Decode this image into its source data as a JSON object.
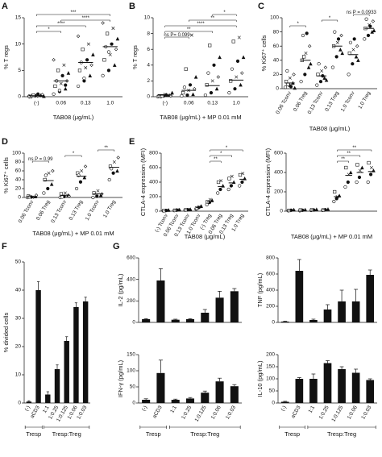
{
  "chart_data": [
    {
      "type": "scatter",
      "panel": "A",
      "ylabel": "% T regs",
      "xlabel": "TAB08 (μg/mL)",
      "categories": [
        "(-)",
        "0.06",
        "0.13",
        "1.0"
      ],
      "ylim": [
        0,
        15
      ],
      "yticks": [
        0,
        5,
        10,
        15
      ],
      "points": [
        [
          0.1,
          0.2,
          0.3,
          0,
          0.1,
          0.4,
          0.2,
          0.5,
          0.1,
          0.3,
          0.2,
          0
        ],
        [
          0.5,
          1,
          1.5,
          2,
          2.5,
          3,
          3,
          4,
          4.5,
          5,
          6,
          7,
          1.2,
          2.2
        ],
        [
          2,
          3,
          4,
          5,
          5.5,
          6,
          6.5,
          7,
          8,
          9,
          10,
          11.5,
          3.5
        ],
        [
          4,
          5,
          6,
          7,
          8,
          9,
          9.5,
          10,
          11,
          12,
          13,
          14,
          8.5
        ]
      ],
      "means": [
        0.2,
        3,
        6.5,
        9.5
      ],
      "brackets": [
        {
          "between": [
            0,
            1
          ],
          "label": "*"
        },
        {
          "between": [
            0,
            2
          ],
          "label": "****"
        },
        {
          "between": [
            1,
            3
          ],
          "label": "****"
        },
        {
          "between": [
            0,
            3
          ],
          "label": "***"
        }
      ]
    },
    {
      "type": "scatter",
      "panel": "B",
      "ylabel": "% T regs",
      "xlabel": "TAB08 (μg/mL) + MP 0.01 mM",
      "categories": [
        "(-)",
        "0.06",
        "0.13",
        "1.0"
      ],
      "ylim": [
        0,
        10
      ],
      "yticks": [
        0,
        2,
        4,
        6,
        8,
        10
      ],
      "points": [
        [
          0,
          0.1,
          0.2,
          0.1,
          0.3,
          0.1,
          0,
          0.2,
          0.5,
          0.1
        ],
        [
          0.1,
          0.2,
          0.3,
          0.5,
          0.8,
          1,
          1.2,
          1.5,
          2.5,
          3.5,
          7.8
        ],
        [
          0.2,
          0.5,
          1,
          1.5,
          2,
          2.5,
          3,
          4,
          5,
          6.5
        ],
        [
          0.5,
          1,
          1.5,
          2,
          2.5,
          3,
          3.5,
          4.5,
          5,
          7,
          7.5
        ]
      ],
      "means": [
        0.2,
        0.8,
        1.4,
        2.1
      ],
      "brackets": [
        {
          "between": [
            0,
            1
          ],
          "label": "ns P= 0.099"
        },
        {
          "between": [
            0,
            2
          ],
          "label": "**"
        },
        {
          "between": [
            0,
            3
          ],
          "label": "****"
        },
        {
          "between": [
            1,
            3
          ],
          "label": "**"
        },
        {
          "between": [
            2,
            3
          ],
          "label": "*"
        }
      ]
    },
    {
      "type": "scatter",
      "panel": "C",
      "ylabel": "% Ki67⁺ cells",
      "xlabel": "TAB08 (μg/mL)",
      "categories": [
        "0.06 Tconv",
        "0.06 Treg",
        "0.13 Tconv",
        "0.13 Treg",
        "1.0 Tconv",
        "1.0 Treg"
      ],
      "ylim": [
        0,
        100
      ],
      "yticks": [
        0,
        20,
        40,
        60,
        80,
        100
      ],
      "points": [
        [
          2,
          5,
          8,
          10,
          15,
          20,
          25,
          3,
          1,
          6
        ],
        [
          10,
          20,
          30,
          40,
          50,
          60,
          75,
          78,
          35,
          45
        ],
        [
          5,
          10,
          15,
          20,
          25,
          30,
          35,
          18,
          12
        ],
        [
          30,
          45,
          55,
          60,
          65,
          75,
          80,
          70,
          50
        ],
        [
          20,
          35,
          45,
          50,
          55,
          60,
          65,
          70,
          40
        ],
        [
          70,
          75,
          80,
          85,
          90,
          95,
          98,
          88,
          82
        ]
      ],
      "means": [
        8,
        40,
        18,
        60,
        48,
        85
      ],
      "brackets": [
        {
          "between": [
            0,
            1
          ],
          "label": "*"
        },
        {
          "between": [
            2,
            3
          ],
          "label": "*"
        },
        {
          "between": [
            4,
            5
          ],
          "label": "ns P = 0.0933"
        }
      ]
    },
    {
      "type": "scatter",
      "panel": "D",
      "ylabel": "% Ki67⁺ cells",
      "xlabel": "TAB08 (μg/mL) + MP 0.01 mM",
      "categories": [
        "0.06 Tconv",
        "0.06 Treg",
        "0.13 Tconv",
        "0.13 Treg",
        "1.0 Tconv",
        "1.0 Treg"
      ],
      "ylim": [
        0,
        100
      ],
      "yticks": [
        0,
        20,
        40,
        60,
        80,
        100
      ],
      "points": [
        [
          0,
          1,
          2,
          3,
          0.5,
          5,
          1
        ],
        [
          10,
          20,
          30,
          40,
          55,
          60,
          50
        ],
        [
          0,
          2,
          5,
          8,
          10,
          3,
          1
        ],
        [
          20,
          35,
          45,
          55,
          60,
          70,
          50
        ],
        [
          0,
          3,
          5,
          10,
          15,
          8
        ],
        [
          40,
          55,
          60,
          70,
          80,
          90,
          65
        ]
      ],
      "means": [
        2,
        38,
        5,
        48,
        8,
        68
      ],
      "brackets": [
        {
          "between": [
            0,
            1
          ],
          "label": "ns P = 0.99"
        },
        {
          "between": [
            2,
            3
          ],
          "label": "*"
        },
        {
          "between": [
            4,
            5
          ],
          "label": "**"
        }
      ]
    },
    {
      "type": "scatter",
      "panel": "E",
      "ylabel": "CTLA-4 expression (MFI)",
      "xlabel": "TAB08 (μg/mL)",
      "categories": [
        "(-) Tconv",
        "0.06 Tconv",
        "0.13 Tconv",
        "1.0 Tconv",
        "(-) Treg",
        "0.06 Treg",
        "0.13 Treg",
        "1.0 Treg"
      ],
      "ylim": [
        0,
        800
      ],
      "yticks": [
        0,
        200,
        400,
        600,
        800
      ],
      "points": [
        [
          5,
          10,
          15,
          8,
          12
        ],
        [
          10,
          15,
          20,
          12,
          18
        ],
        [
          15,
          20,
          25,
          18,
          22
        ],
        [
          30,
          50,
          70,
          40,
          60
        ],
        [
          90,
          120,
          150,
          130,
          160
        ],
        [
          250,
          300,
          350,
          400,
          420
        ],
        [
          300,
          350,
          400,
          450,
          480
        ],
        [
          350,
          400,
          450,
          500,
          520
        ]
      ],
      "means": [
        10,
        15,
        20,
        50,
        130,
        340,
        390,
        440
      ],
      "brackets": [
        {
          "between": [
            4,
            5
          ],
          "label": "**"
        },
        {
          "between": [
            4,
            6
          ],
          "label": "*"
        },
        {
          "between": [
            4,
            7
          ],
          "label": "*"
        }
      ]
    },
    {
      "type": "scatter",
      "ylabel": "CTLA-4 expression (MFI)",
      "xlabel": "TAB08 (μg/mL) + MP 0.01 mM",
      "categories": [
        null,
        null,
        null,
        null,
        null,
        null,
        null,
        null
      ],
      "ylim": [
        0,
        600
      ],
      "yticks": [
        0,
        200,
        400,
        600
      ],
      "points": [
        [
          5,
          10,
          15,
          8
        ],
        [
          5,
          10,
          15,
          12
        ],
        [
          8,
          12,
          18,
          14
        ],
        [
          10,
          15,
          20,
          12
        ],
        [
          100,
          130,
          160,
          200,
          150
        ],
        [
          250,
          300,
          400,
          450,
          380
        ],
        [
          300,
          350,
          450,
          480,
          420
        ],
        [
          300,
          380,
          420,
          500,
          450
        ]
      ],
      "means": [
        10,
        10,
        12,
        15,
        150,
        370,
        400,
        410
      ],
      "brackets": [
        {
          "between": [
            4,
            5
          ],
          "label": "**"
        },
        {
          "between": [
            4,
            6
          ],
          "label": "**"
        },
        {
          "between": [
            4,
            7
          ],
          "label": "**"
        }
      ]
    },
    {
      "type": "bar",
      "panel": "F",
      "ylabel": "% divided cells",
      "categories": [
        "(-)",
        "aCD3",
        "1:1",
        "1:0.25",
        "1:0.125",
        "1:0.06",
        "1:0.03"
      ],
      "ylim": [
        0,
        50
      ],
      "yticks": [
        0,
        10,
        20,
        30,
        40,
        50
      ],
      "values": [
        0.5,
        40,
        3,
        12,
        22,
        34,
        36
      ],
      "errors": [
        0.3,
        3,
        1,
        1.5,
        1.5,
        1.5,
        1.5
      ],
      "color": "#111111",
      "groups": [
        {
          "label": "Tresp",
          "span": [
            0,
            1
          ]
        },
        {
          "label": "Tresp:Treg",
          "span": [
            2,
            6
          ]
        }
      ]
    },
    {
      "type": "bar",
      "panel": "G",
      "ylabel": "IL-2 (pg/mL)",
      "categories": [
        null,
        null,
        null,
        null,
        null,
        null,
        null
      ],
      "ylim": [
        0,
        600
      ],
      "yticks": [
        0,
        200,
        400,
        600
      ],
      "values": [
        30,
        390,
        25,
        30,
        90,
        230,
        290
      ],
      "errors": [
        5,
        110,
        5,
        5,
        30,
        60,
        25
      ],
      "color": "#111111"
    },
    {
      "type": "bar",
      "ylabel": "TNF (pg/mL)",
      "categories": [
        null,
        null,
        null,
        null,
        null,
        null,
        null
      ],
      "ylim": [
        0,
        800
      ],
      "yticks": [
        0,
        200,
        400,
        600,
        800
      ],
      "values": [
        10,
        640,
        30,
        160,
        260,
        260,
        590
      ],
      "errors": [
        5,
        140,
        10,
        60,
        140,
        150,
        60
      ],
      "color": "#111111"
    },
    {
      "type": "bar",
      "ylabel": "IFN-γ (pg/mL)",
      "categories": [
        "(-)",
        "aCD3",
        "1:1",
        "1:0.25",
        "1:0.125",
        "1:0.06",
        "1:0.03"
      ],
      "ylim": [
        0,
        150
      ],
      "yticks": [
        0,
        50,
        100,
        150
      ],
      "values": [
        10,
        93,
        10,
        14,
        32,
        67,
        52
      ],
      "errors": [
        3,
        40,
        2,
        3,
        5,
        10,
        5
      ],
      "color": "#111111",
      "groups": [
        {
          "label": "Tresp",
          "span": [
            0,
            1
          ]
        },
        {
          "label": "Tresp:Treg",
          "span": [
            2,
            6
          ]
        }
      ]
    },
    {
      "type": "bar",
      "ylabel": "IL-10 (pg/mL)",
      "categories": [
        "(-)",
        "aCD3",
        "1:1",
        "1:0.25",
        "1:0.125",
        "1:0.06",
        "1:0.03"
      ],
      "ylim": [
        0,
        200
      ],
      "yticks": [
        0,
        50,
        100,
        150,
        200
      ],
      "values": [
        5,
        100,
        100,
        165,
        140,
        125,
        95
      ],
      "errors": [
        2,
        5,
        20,
        10,
        10,
        15,
        5
      ],
      "color": "#111111",
      "groups": [
        {
          "label": "Tresp",
          "span": [
            0,
            1
          ]
        },
        {
          "label": "Tresp:Treg",
          "span": [
            2,
            6
          ]
        }
      ]
    }
  ]
}
